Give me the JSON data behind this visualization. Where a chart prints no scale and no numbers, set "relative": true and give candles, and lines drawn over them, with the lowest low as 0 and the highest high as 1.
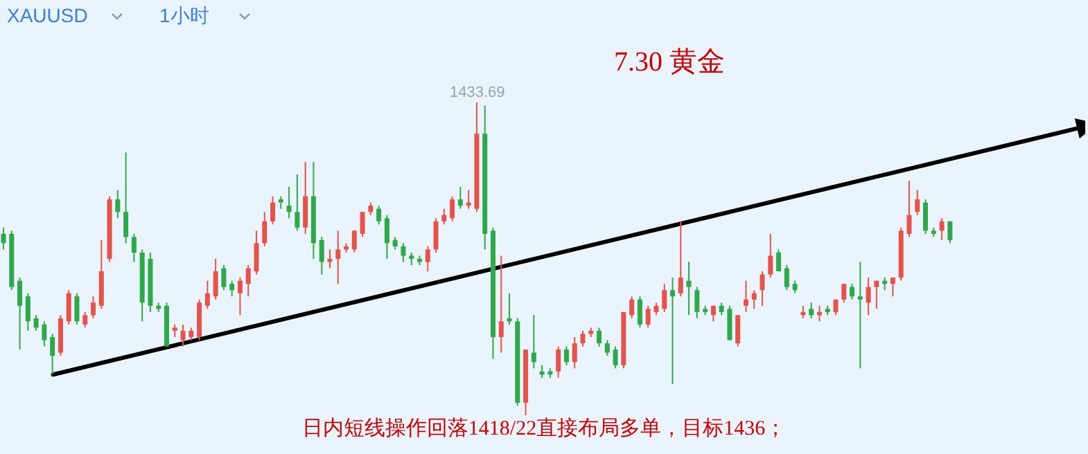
{
  "chart_data": {
    "type": "candlestick",
    "title": "7.30 黄金",
    "relative": true,
    "tick_labels": false,
    "series": [
      {
        "type": "line",
        "color": "#000000",
        "values": [
          null,
          null,
          null,
          null,
          null,
          null,
          0.13,
          null,
          null,
          null,
          null,
          null,
          null,
          null,
          null,
          null,
          null,
          null,
          null,
          null,
          null,
          null,
          null,
          null,
          null,
          null,
          null,
          null,
          null,
          null,
          null,
          null,
          null,
          null,
          null,
          null,
          null,
          null,
          null,
          null,
          null,
          null,
          null,
          null,
          null,
          null,
          null,
          null,
          null,
          null,
          null,
          null,
          null,
          null,
          null,
          null,
          null,
          null,
          null,
          null,
          null,
          null,
          null,
          null,
          null,
          null,
          null,
          null,
          null,
          null,
          null,
          null,
          null,
          null,
          null,
          null,
          null,
          null,
          null,
          null,
          null,
          null,
          null,
          null,
          null,
          null,
          null,
          null,
          null,
          null,
          null,
          null,
          null,
          null,
          null,
          null,
          null,
          null,
          null,
          null,
          null,
          null,
          null,
          null,
          null,
          null,
          null,
          null,
          null,
          null,
          null,
          null,
          null,
          null,
          null,
          null,
          null,
          null,
          null,
          null,
          null,
          null,
          null,
          null,
          null,
          null,
          null,
          null,
          null,
          null,
          null,
          null,
          0.92
        ]
      }
    ],
    "annotations": [
      "XAUUSD",
      "1小时",
      "日内短线操作回落1418/22直接布局多单，目标1436；",
      {
        "text": "1433.69",
        "y": 1
      }
    ],
    "categories": [
      null,
      null,
      null,
      null,
      null,
      null,
      null,
      null,
      null,
      null,
      null,
      null,
      null,
      null,
      null,
      null,
      null,
      null,
      null,
      null,
      null,
      null,
      null,
      null,
      null,
      null,
      null,
      null,
      null,
      null,
      null,
      null,
      null,
      null,
      null,
      null,
      null,
      null,
      null,
      null,
      null,
      null,
      null,
      null,
      null,
      null,
      null,
      null,
      null,
      null,
      null,
      null,
      null,
      null,
      null,
      null,
      null,
      null,
      null,
      null,
      null,
      null,
      null,
      null,
      null,
      null,
      null,
      null,
      null,
      null,
      null,
      null,
      null,
      null,
      null,
      null,
      null,
      null,
      null,
      null,
      null,
      null,
      null,
      null,
      null,
      null,
      null,
      null,
      null,
      null,
      null,
      null,
      null,
      null,
      null,
      null,
      null,
      null,
      null,
      null,
      null,
      null,
      null,
      null,
      null,
      null,
      null,
      null,
      null,
      null,
      null,
      null,
      null,
      null,
      null,
      null,
      null,
      null,
      null,
      null,
      null,
      null,
      null,
      null,
      null,
      null,
      null,
      null,
      null,
      null,
      null,
      null,
      null
    ],
    "ohlc": [
      [
        0.58,
        0.6,
        0.53,
        0.55
      ],
      [
        0.58,
        0.59,
        0.4,
        0.41
      ],
      [
        0.43,
        0.44,
        0.21,
        0.35
      ],
      [
        0.38,
        0.39,
        0.27,
        0.3
      ],
      [
        0.31,
        0.32,
        0.27,
        0.28
      ],
      [
        0.29,
        0.3,
        0.22,
        0.24
      ],
      [
        0.25,
        0.26,
        0.13,
        0.19
      ],
      [
        0.2,
        0.32,
        0.19,
        0.31
      ],
      [
        0.3,
        0.4,
        0.29,
        0.39
      ],
      [
        0.38,
        0.39,
        0.29,
        0.3
      ],
      [
        0.29,
        0.33,
        0.28,
        0.32
      ],
      [
        0.32,
        0.38,
        0.31,
        0.36
      ],
      [
        0.35,
        0.56,
        0.34,
        0.46
      ],
      [
        0.5,
        0.7,
        0.49,
        0.69
      ],
      [
        0.69,
        0.72,
        0.63,
        0.65
      ],
      [
        0.65,
        0.84,
        0.55,
        0.57
      ],
      [
        0.57,
        0.58,
        0.49,
        0.52
      ],
      [
        0.52,
        0.53,
        0.3,
        0.36
      ],
      [
        0.5,
        0.52,
        0.33,
        0.35
      ],
      [
        0.35,
        0.36,
        0.33,
        0.34
      ],
      [
        0.35,
        0.36,
        0.22,
        0.22
      ],
      [
        0.27,
        0.29,
        0.25,
        0.28
      ],
      [
        0.24,
        0.29,
        0.22,
        0.27
      ],
      [
        0.25,
        0.28,
        0.24,
        0.27
      ],
      [
        0.25,
        0.37,
        0.24,
        0.36
      ],
      [
        0.35,
        0.43,
        0.34,
        0.39
      ],
      [
        0.38,
        0.5,
        0.37,
        0.46
      ],
      [
        0.47,
        0.48,
        0.4,
        0.41
      ],
      [
        0.42,
        0.43,
        0.38,
        0.4
      ],
      [
        0.39,
        0.44,
        0.32,
        0.43
      ],
      [
        0.42,
        0.48,
        0.38,
        0.47
      ],
      [
        0.46,
        0.59,
        0.45,
        0.55
      ],
      [
        0.55,
        0.65,
        0.54,
        0.62
      ],
      [
        0.62,
        0.7,
        0.61,
        0.68
      ],
      [
        0.69,
        0.7,
        0.66,
        0.68
      ],
      [
        0.67,
        0.73,
        0.63,
        0.65
      ],
      [
        0.65,
        0.77,
        0.59,
        0.6
      ],
      [
        0.6,
        0.81,
        0.58,
        0.7
      ],
      [
        0.7,
        0.81,
        0.5,
        0.55
      ],
      [
        0.56,
        0.57,
        0.45,
        0.49
      ],
      [
        0.49,
        0.53,
        0.47,
        0.5
      ],
      [
        0.5,
        0.59,
        0.42,
        0.53
      ],
      [
        0.53,
        0.55,
        0.52,
        0.54
      ],
      [
        0.53,
        0.59,
        0.52,
        0.59
      ],
      [
        0.58,
        0.65,
        0.57,
        0.65
      ],
      [
        0.65,
        0.68,
        0.64,
        0.67
      ],
      [
        0.66,
        0.67,
        0.61,
        0.62
      ],
      [
        0.63,
        0.64,
        0.5,
        0.55
      ],
      [
        0.56,
        0.57,
        0.53,
        0.54
      ],
      [
        0.54,
        0.55,
        0.49,
        0.51
      ],
      [
        0.51,
        0.52,
        0.48,
        0.5
      ],
      [
        0.5,
        0.51,
        0.48,
        0.49
      ],
      [
        0.49,
        0.54,
        0.46,
        0.53
      ],
      [
        0.53,
        0.63,
        0.52,
        0.62
      ],
      [
        0.62,
        0.66,
        0.61,
        0.64
      ],
      [
        0.63,
        0.7,
        0.62,
        0.69
      ],
      [
        0.69,
        0.73,
        0.66,
        0.67
      ],
      [
        0.67,
        0.72,
        0.66,
        0.68
      ],
      [
        0.66,
        1.0,
        0.65,
        0.9
      ],
      [
        0.9,
        0.99,
        0.53,
        0.58
      ],
      [
        0.59,
        0.6,
        0.18,
        0.25
      ],
      [
        0.25,
        0.51,
        0.2,
        0.3
      ],
      [
        0.31,
        0.39,
        0.29,
        0.3
      ],
      [
        0.3,
        0.31,
        0.03,
        0.04
      ],
      [
        0.04,
        0.21,
        0.0,
        0.21
      ],
      [
        0.2,
        0.32,
        0.15,
        0.17
      ],
      [
        0.14,
        0.16,
        0.12,
        0.13
      ],
      [
        0.14,
        0.15,
        0.12,
        0.13
      ],
      [
        0.14,
        0.22,
        0.12,
        0.21
      ],
      [
        0.21,
        0.22,
        0.16,
        0.17
      ],
      [
        0.17,
        0.25,
        0.15,
        0.23
      ],
      [
        0.23,
        0.27,
        0.22,
        0.26
      ],
      [
        0.26,
        0.28,
        0.25,
        0.27
      ],
      [
        0.27,
        0.28,
        0.22,
        0.23
      ],
      [
        0.23,
        0.24,
        0.19,
        0.2
      ],
      [
        0.21,
        0.22,
        0.15,
        0.16
      ],
      [
        0.16,
        0.33,
        0.15,
        0.33
      ],
      [
        0.32,
        0.38,
        0.31,
        0.37
      ],
      [
        0.37,
        0.38,
        0.28,
        0.29
      ],
      [
        0.29,
        0.35,
        0.28,
        0.34
      ],
      [
        0.33,
        0.36,
        0.32,
        0.35
      ],
      [
        0.34,
        0.42,
        0.33,
        0.4
      ],
      [
        0.4,
        0.44,
        0.1,
        0.38
      ],
      [
        0.39,
        0.62,
        0.38,
        0.44
      ],
      [
        0.43,
        0.49,
        0.32,
        0.41
      ],
      [
        0.4,
        0.41,
        0.31,
        0.33
      ],
      [
        0.34,
        0.35,
        0.32,
        0.33
      ],
      [
        0.32,
        0.35,
        0.3,
        0.35
      ],
      [
        0.35,
        0.36,
        0.32,
        0.33
      ],
      [
        0.34,
        0.35,
        0.24,
        0.24
      ],
      [
        0.23,
        0.32,
        0.22,
        0.32
      ],
      [
        0.35,
        0.43,
        0.33,
        0.37
      ],
      [
        0.37,
        0.4,
        0.34,
        0.39
      ],
      [
        0.4,
        0.46,
        0.35,
        0.45
      ],
      [
        0.45,
        0.58,
        0.44,
        0.51
      ],
      [
        0.52,
        0.53,
        0.46,
        0.46
      ],
      [
        0.47,
        0.48,
        0.4,
        0.41
      ],
      [
        0.42,
        0.43,
        0.39,
        0.4
      ],
      [
        0.32,
        0.35,
        0.31,
        0.33
      ],
      [
        0.34,
        0.36,
        0.31,
        0.32
      ],
      [
        0.32,
        0.35,
        0.3,
        0.33
      ],
      [
        0.34,
        0.35,
        0.32,
        0.33
      ],
      [
        0.33,
        0.37,
        0.32,
        0.37
      ],
      [
        0.37,
        0.42,
        0.36,
        0.42
      ],
      [
        0.41,
        0.42,
        0.37,
        0.38
      ],
      [
        0.38,
        0.49,
        0.15,
        0.37
      ],
      [
        0.36,
        0.44,
        0.32,
        0.41
      ],
      [
        0.41,
        0.43,
        0.34,
        0.43
      ],
      [
        0.43,
        0.44,
        0.4,
        0.42
      ],
      [
        0.42,
        0.44,
        0.38,
        0.44
      ],
      [
        0.44,
        0.6,
        0.43,
        0.59
      ],
      [
        0.58,
        0.75,
        0.57,
        0.64
      ],
      [
        0.65,
        0.72,
        0.64,
        0.69
      ],
      [
        0.68,
        0.69,
        0.58,
        0.59
      ],
      [
        0.59,
        0.6,
        0.57,
        0.58
      ],
      [
        0.59,
        0.63,
        0.56,
        0.62
      ],
      [
        0.62,
        0.62,
        0.55,
        0.56
      ],
      null,
      null,
      null,
      null,
      null,
      null,
      null,
      null,
      null,
      null,
      null,
      null,
      null,
      null,
      null,
      null
    ],
    "colors": [
      "#2fa84a",
      "#2fa84a",
      "#2fa84a",
      "#2fa84a",
      "#2fa84a",
      "#2fa84a",
      "#2fa84a",
      "#e5534b",
      "#e5534b",
      "#2fa84a",
      "#e5534b",
      "#e5534b",
      "#e5534b",
      "#e5534b",
      "#2fa84a",
      "#2fa84a",
      "#2fa84a",
      "#2fa84a",
      "#2fa84a",
      "#2fa84a",
      "#2fa84a",
      "#e5534b",
      "#e5534b",
      "#e5534b",
      "#e5534b",
      "#e5534b",
      "#e5534b",
      "#2fa84a",
      "#2fa84a",
      "#e5534b",
      "#e5534b",
      "#e5534b",
      "#e5534b",
      "#e5534b",
      "#2fa84a",
      "#2fa84a",
      "#2fa84a",
      "#e5534b",
      "#2fa84a",
      "#2fa84a",
      "#e5534b",
      "#e5534b",
      "#e5534b",
      "#e5534b",
      "#e5534b",
      "#e5534b",
      "#2fa84a",
      "#2fa84a",
      "#2fa84a",
      "#2fa84a",
      "#2fa84a",
      "#2fa84a",
      "#e5534b",
      "#e5534b",
      "#e5534b",
      "#e5534b",
      "#2fa84a",
      "#e5534b",
      "#e5534b",
      "#2fa84a",
      "#2fa84a",
      "#e5534b",
      "#2fa84a",
      "#2fa84a",
      "#e5534b",
      "#2fa84a",
      "#2fa84a",
      "#2fa84a",
      "#e5534b",
      "#2fa84a",
      "#e5534b",
      "#e5534b",
      "#e5534b",
      "#2fa84a",
      "#2fa84a",
      "#2fa84a",
      "#e5534b",
      "#e5534b",
      "#2fa84a",
      "#e5534b",
      "#e5534b",
      "#e5534b",
      "#2fa84a",
      "#e5534b",
      "#2fa84a",
      "#2fa84a",
      "#2fa84a",
      "#e5534b",
      "#2fa84a",
      "#2fa84a",
      "#e5534b",
      "#e5534b",
      "#e5534b",
      "#e5534b",
      "#e5534b",
      "#2fa84a",
      "#2fa84a",
      "#2fa84a",
      "#e5534b",
      "#2fa84a",
      "#e5534b",
      "#2fa84a",
      "#e5534b",
      "#e5534b",
      "#2fa84a",
      "#2fa84a",
      "#e5534b",
      "#e5534b",
      "#2fa84a",
      "#e5534b",
      "#e5534b",
      "#e5534b",
      "#e5534b",
      "#2fa84a",
      "#2fa84a",
      "#e5534b",
      "#2fa84a",
      null,
      null,
      null,
      null,
      null,
      null,
      null,
      null,
      null,
      null,
      null,
      null,
      null,
      null,
      null,
      null
    ]
  }
}
